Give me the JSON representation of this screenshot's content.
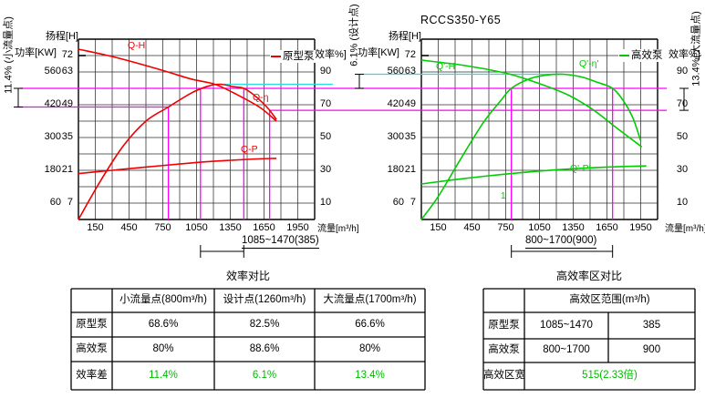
{
  "labels": {
    "drawing_title": "RCCS350-Y65",
    "dim_small_flow": "11.4% (小流量点)",
    "dim_design": "6.1% (设计点)",
    "dim_large_flow": "13.4%(大流量点)",
    "stray_mark": "1"
  },
  "colors": {
    "original_pump": "#f00000",
    "high_eff_pump": "#00cc00",
    "marker_magenta": "#ff00ff",
    "marker_cyan": "#2adddd",
    "highlight_green": "#00bb00",
    "grid": "#2e2e2e",
    "border": "#000000"
  },
  "chart_data": [
    {
      "type": "line",
      "pump": "原型泵",
      "color": "#f00000",
      "xlabel": "流量[m³/h]",
      "xlim": [
        0,
        2100
      ],
      "x_ticks": [
        150,
        450,
        750,
        1050,
        1350,
        1650,
        1950
      ],
      "axes": {
        "head": {
          "label": "扬程[H]",
          "ticks": [
            72,
            63,
            49,
            35,
            21,
            7
          ]
        },
        "power": {
          "label": "功率[KW]",
          "ticks": [
            560,
            420,
            300,
            180,
            60
          ]
        },
        "eff": {
          "label": "效率%]",
          "ticks": [
            90,
            70,
            50,
            30,
            10
          ]
        }
      },
      "series": [
        {
          "name": "Q-H",
          "axis": "head",
          "points": [
            [
              0,
              75.5
            ],
            [
              330,
              71
            ],
            [
              740,
              64
            ],
            [
              1000,
              60
            ],
            [
              1215,
              57.7
            ],
            [
              1410,
              53.3
            ],
            [
              1615,
              47.8
            ],
            [
              1760,
              42
            ]
          ]
        },
        {
          "name": "Q-η",
          "axis": "eff",
          "points": [
            [
              0,
              0
            ],
            [
              200,
              24
            ],
            [
              400,
              45
            ],
            [
              600,
              60
            ],
            [
              800,
              68.6
            ],
            [
              1000,
              77
            ],
            [
              1150,
              81.3
            ],
            [
              1260,
              82.5
            ],
            [
              1380,
              81
            ],
            [
              1470,
              80
            ],
            [
              1560,
              76
            ],
            [
              1640,
              71
            ],
            [
              1700,
              66.6
            ],
            [
              1760,
              61
            ]
          ]
        },
        {
          "name": "Q-P",
          "axis": "power",
          "points": [
            [
              0,
              168
            ],
            [
              300,
              180
            ],
            [
              600,
              192
            ],
            [
              900,
              203
            ],
            [
              1200,
              213
            ],
            [
              1500,
              220
            ],
            [
              1760,
              224
            ]
          ]
        }
      ],
      "operating_points": {
        "small_flow": {
          "flow": 800,
          "eff": 68.6
        },
        "design": {
          "flow": 1260,
          "eff": 82.5
        },
        "large_flow": {
          "flow": 1700,
          "eff": 66.6
        }
      },
      "high_eff_zone": [
        1085,
        1470
      ],
      "high_eff_range_label": "1085~1470(385)"
    },
    {
      "type": "line",
      "title": "RCCS350-Y65",
      "pump": "高效泵",
      "color": "#00cc00",
      "xlabel": "流量[m³/h]",
      "xlim": [
        0,
        2100
      ],
      "x_ticks": [
        150,
        450,
        750,
        1050,
        1350,
        1650,
        1950
      ],
      "axes": {
        "head": {
          "label": "扬程[H]",
          "ticks": [
            72,
            63,
            49,
            35,
            21,
            7
          ]
        },
        "power": {
          "label": "功率[KW]",
          "ticks": [
            560,
            420,
            300,
            180,
            60
          ]
        },
        "eff": {
          "label": "效率%]",
          "ticks": [
            90,
            70,
            50,
            30,
            10
          ]
        }
      },
      "series": [
        {
          "name": "Q'-H",
          "axis": "head",
          "points": [
            [
              0,
              69.5
            ],
            [
              390,
              66.5
            ],
            [
              740,
              62.6
            ],
            [
              960,
              59.5
            ],
            [
              1280,
              53.7
            ],
            [
              1520,
              47.1
            ],
            [
              1730,
              39.3
            ],
            [
              1960,
              31
            ]
          ]
        },
        {
          "name": "Q'-η'",
          "axis": "eff",
          "points": [
            [
              0,
              0
            ],
            [
              150,
              14
            ],
            [
              350,
              37
            ],
            [
              550,
              59
            ],
            [
              700,
              72
            ],
            [
              800,
              80
            ],
            [
              950,
              85.5
            ],
            [
              1100,
              88
            ],
            [
              1260,
              88.6
            ],
            [
              1420,
              87
            ],
            [
              1550,
              84
            ],
            [
              1700,
              80
            ],
            [
              1800,
              72
            ],
            [
              1880,
              62
            ],
            [
              1950,
              48
            ]
          ]
        },
        {
          "name": "Q'-P'",
          "axis": "power",
          "points": [
            [
              0,
              130
            ],
            [
              300,
              146
            ],
            [
              600,
              160
            ],
            [
              900,
              172
            ],
            [
              1200,
              182
            ],
            [
              1500,
              189
            ],
            [
              1800,
              194
            ],
            [
              2000,
              196
            ]
          ]
        }
      ],
      "operating_points": {
        "small_flow": {
          "flow": 800,
          "eff": 80
        },
        "design": {
          "flow": 1260,
          "eff": 88.6
        },
        "large_flow": {
          "flow": 1700,
          "eff": 80
        }
      },
      "high_eff_zone": [
        800,
        1700
      ],
      "high_eff_range_label": "800~1700(900)"
    }
  ],
  "tables": [
    {
      "title": "效率对比",
      "col_headers": [
        "",
        "小流量点(800m³/h)",
        "设计点(1260m³/h)",
        "大流量点(1700m³/h)"
      ],
      "rows": [
        {
          "header": "原型泵",
          "cells": [
            "68.6%",
            "82.5%",
            "66.6%"
          ],
          "highlight": false
        },
        {
          "header": "高效泵",
          "cells": [
            "80%",
            "88.6%",
            "80%"
          ],
          "highlight": false
        },
        {
          "header": "效率差",
          "cells": [
            "11.4%",
            "6.1%",
            "13.4%"
          ],
          "highlight": true
        }
      ]
    },
    {
      "title": "高效率区对比",
      "col_headers": [
        "",
        "高效区范围(m³/h)"
      ],
      "rows": [
        {
          "header": "原型泵",
          "cells": [
            "1085~1470",
            "385"
          ],
          "highlight": false
        },
        {
          "header": "高效泵",
          "cells": [
            "800~1700",
            "900"
          ],
          "highlight": false
        },
        {
          "header": "高效区宽",
          "cells": [
            "515(2.33倍)"
          ],
          "highlight": true,
          "span": true
        }
      ]
    }
  ]
}
